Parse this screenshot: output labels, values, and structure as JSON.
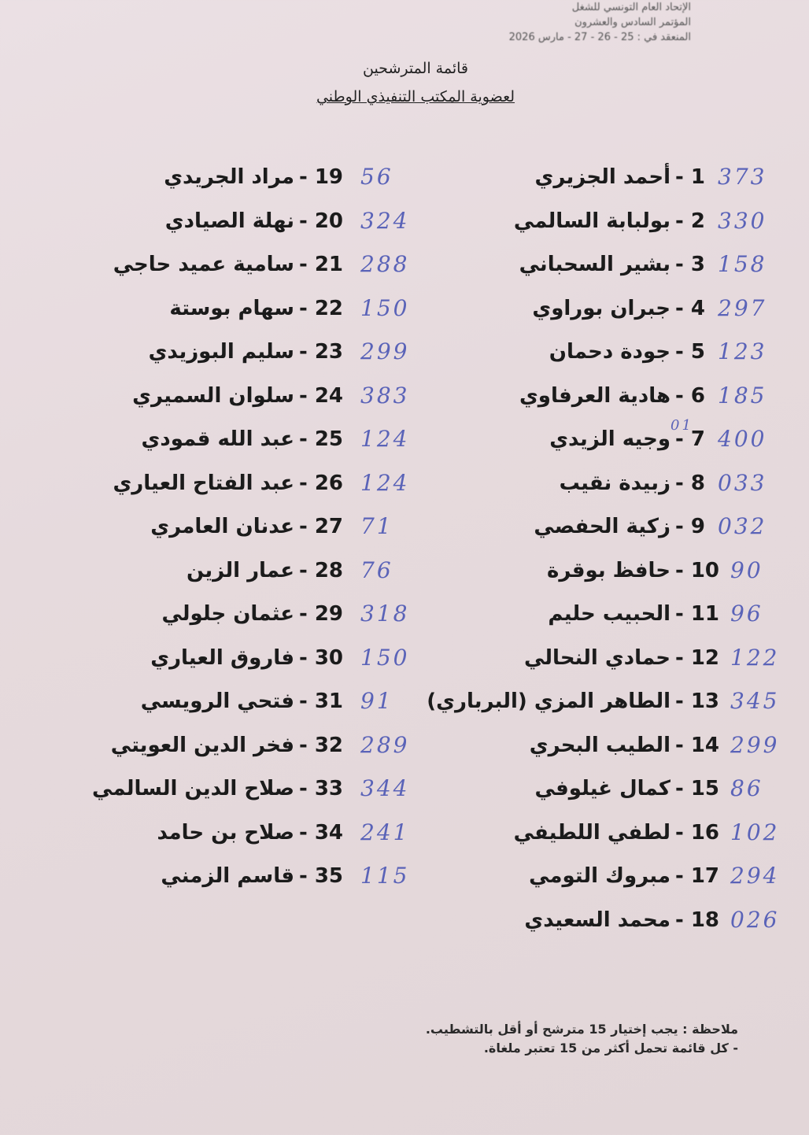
{
  "header": {
    "line1": "الإتحاد العام التونسي للشغل",
    "line2": "المؤتمر السادس والعشرون",
    "line3": "المنعقد في : 25 - 26 - 27 - مارس 2026"
  },
  "title": {
    "line1": "قائمة المترشحين",
    "line2": "لعضوية المكتب التنفيذي الوطني"
  },
  "candidates": [
    {
      "num": "1",
      "name": "أحمد الجزيري",
      "votes": "373"
    },
    {
      "num": "2",
      "name": "بولبابة السالمي",
      "votes": "330"
    },
    {
      "num": "3",
      "name": "بشير السحباني",
      "votes": "158"
    },
    {
      "num": "4",
      "name": "جبران بوراوي",
      "votes": "297"
    },
    {
      "num": "5",
      "name": "جودة دحمان",
      "votes": "123"
    },
    {
      "num": "6",
      "name": "هادية العرفاوي",
      "votes": "185"
    },
    {
      "num": "7",
      "name": "وجيه الزيدي",
      "votes": "400"
    },
    {
      "num": "8",
      "name": "زبيدة نقيب",
      "votes": "033"
    },
    {
      "num": "9",
      "name": "زكية الحفصي",
      "votes": "032"
    },
    {
      "num": "10",
      "name": "حافظ بوقرة",
      "votes": "90"
    },
    {
      "num": "11",
      "name": "الحبيب حليم",
      "votes": "96"
    },
    {
      "num": "12",
      "name": "حمادي النحالي",
      "votes": "122"
    },
    {
      "num": "13",
      "name": "الطاهر المزي (البرباري)",
      "votes": "345"
    },
    {
      "num": "14",
      "name": "الطيب البحري",
      "votes": "299"
    },
    {
      "num": "15",
      "name": "كمال غيلوفي",
      "votes": "86"
    },
    {
      "num": "16",
      "name": "لطفي اللطيفي",
      "votes": "102"
    },
    {
      "num": "17",
      "name": "مبروك التومي",
      "votes": "294"
    },
    {
      "num": "18",
      "name": "محمد السعيدي",
      "votes": "026"
    },
    {
      "num": "19",
      "name": "مراد الجريدي",
      "votes": "56"
    },
    {
      "num": "20",
      "name": "نهلة الصيادي",
      "votes": "324"
    },
    {
      "num": "21",
      "name": "سامية عميد حاجي",
      "votes": "288"
    },
    {
      "num": "22",
      "name": "سهام بوستة",
      "votes": "150"
    },
    {
      "num": "23",
      "name": "سليم البوزيدي",
      "votes": "299"
    },
    {
      "num": "24",
      "name": "سلوان السميري",
      "votes": "383"
    },
    {
      "num": "25",
      "name": "عبد الله قمودي",
      "votes": "124"
    },
    {
      "num": "26",
      "name": "عبد الفتاح العياري",
      "votes": "124"
    },
    {
      "num": "27",
      "name": "عدنان العامري",
      "votes": "71"
    },
    {
      "num": "28",
      "name": "عمار الزين",
      "votes": "76"
    },
    {
      "num": "29",
      "name": "عثمان جلولي",
      "votes": "318"
    },
    {
      "num": "30",
      "name": "فاروق العياري",
      "votes": "150"
    },
    {
      "num": "31",
      "name": "فتحي الرويسي",
      "votes": "91"
    },
    {
      "num": "32",
      "name": "فخر الدين العويتي",
      "votes": "289"
    },
    {
      "num": "33",
      "name": "صلاح الدين السالمي",
      "votes": "344"
    },
    {
      "num": "34",
      "name": "صلاح بن حامد",
      "votes": "241"
    },
    {
      "num": "35",
      "name": "قاسم الزمني",
      "votes": "115"
    }
  ],
  "annotation_7": "01",
  "notes": {
    "line1": "ملاحظة : يجب إختيار 15 مترشح أو أقل بالتشطيب.",
    "line2": "- كل قائمة تحمل أكثر من 15 تعتبر ملغاة."
  },
  "colors": {
    "ink_handwriting": "#5a63b8",
    "paper": "#e8dcdf"
  }
}
